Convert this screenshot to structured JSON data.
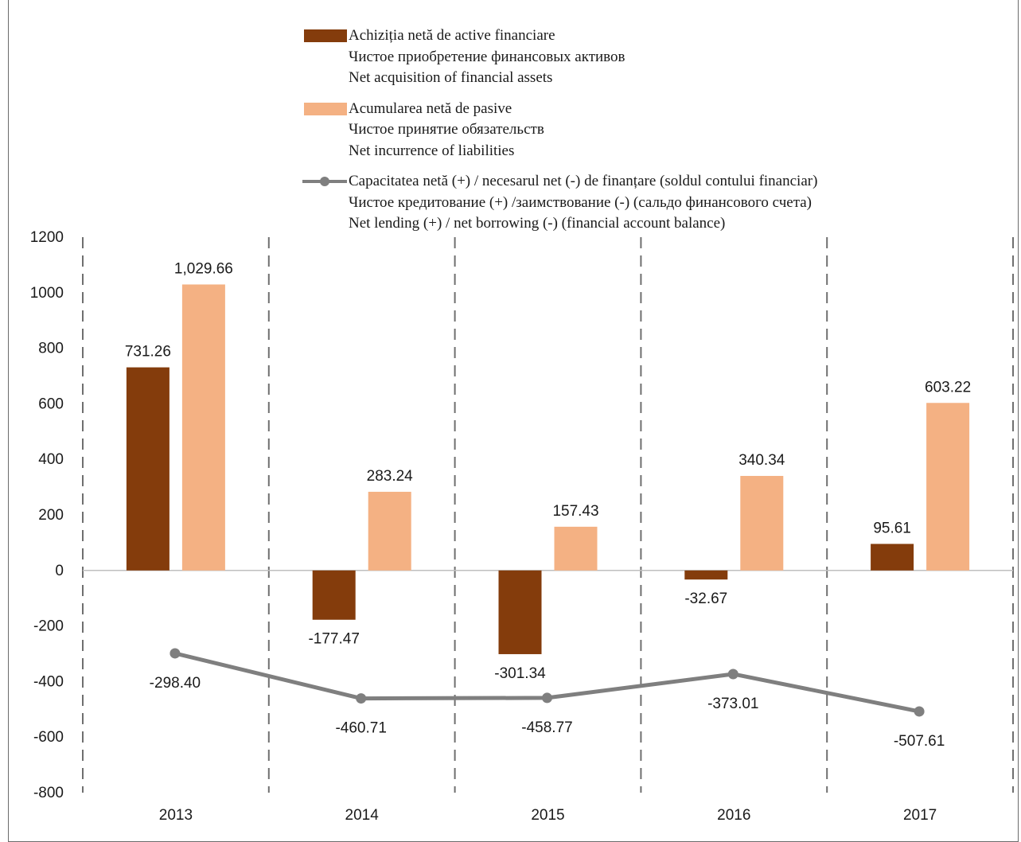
{
  "chart_data": {
    "type": "bar",
    "categories": [
      "2013",
      "2014",
      "2015",
      "2016",
      "2017"
    ],
    "ylim": [
      -800,
      1200
    ],
    "yticks": [
      1200,
      1000,
      800,
      600,
      400,
      200,
      0,
      -200,
      -400,
      -600,
      -800
    ],
    "series": [
      {
        "name": "Achiziția netă de active financiare",
        "name_lines": [
          "Achiziția netă de active financiare",
          "Чистое приобретение финансовых активов",
          "Net acquisition of financial assets"
        ],
        "type": "bar",
        "color": "#843C0C",
        "values": [
          731.26,
          -177.47,
          -301.34,
          -32.67,
          95.61
        ],
        "labels": [
          "731.26",
          "-177.47",
          "-301.34",
          "-32.67",
          "95.61"
        ]
      },
      {
        "name": "Acumularea netă de pasive",
        "name_lines": [
          "Acumularea netă de pasive",
          "Чистое принятие обязательств",
          "Net incurrence of liabilities"
        ],
        "type": "bar",
        "color": "#F4B183",
        "values": [
          1029.66,
          283.24,
          157.43,
          340.34,
          603.22
        ],
        "labels": [
          "1,029.66",
          "283.24",
          "157.43",
          "340.34",
          "603.22"
        ]
      },
      {
        "name": "Capacitatea netă (+) / necesarul net (-) de finanțare (soldul contului financiar)",
        "name_lines": [
          "Capacitatea netă (+) / necesarul net (-) de finanțare (soldul contului financiar)",
          "Чистое кредитование (+) /заимствование (-) (сальдо финансового счета)",
          "Net lending (+) / net borrowing (-) (financial account balance)"
        ],
        "type": "line",
        "color": "#7F7F7F",
        "values": [
          -298.4,
          -460.71,
          -458.77,
          -373.01,
          -507.61
        ],
        "labels": [
          "-298.40",
          "-460.71",
          "-458.77",
          "-373.01",
          "-507.61"
        ]
      }
    ],
    "legend_position": "top",
    "grid": "vertical dashed separators between categories"
  }
}
